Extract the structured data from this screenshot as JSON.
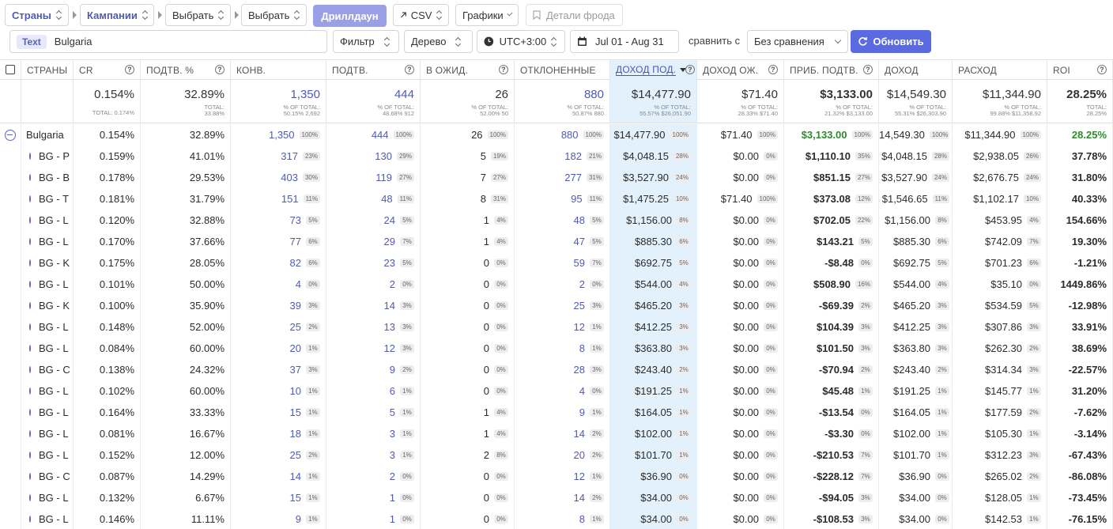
{
  "toolbar": {
    "group1": "Страны",
    "group2": "Кампании",
    "select1": "Выбрать",
    "select2": "Выбрать",
    "drilldown": "Дриллдаун",
    "csv": "CSV",
    "charts": "Графики",
    "fraud": "Детали фрода"
  },
  "filterbar": {
    "text_tag": "Text",
    "text_value": "Bulgaria",
    "filter": "Фильтр",
    "tree": "Дерево",
    "timezone": "UTC+3:00",
    "date_range": "Jul 01 - Aug 31",
    "compare_label": "сравнить с",
    "compare_value": "Без сравнения",
    "update": "Обновить"
  },
  "columns": [
    "СТРАНЫ",
    "CR",
    "ПОДТВ. %",
    "КОНВ.",
    "ПОДТВ.",
    "В ОЖИД.",
    "ОТКЛОНЕННЫЕ",
    "ДОХОД ПОД.",
    "ДОХОД ОЖ.",
    "ПРИБ. ПОДТВ.",
    "ДОХОД",
    "РАСХОД",
    "ROI"
  ],
  "totals": [
    {
      "v": "",
      "s": ""
    },
    {
      "v": "0.154%",
      "s": "TOTAL: 0.174%"
    },
    {
      "v": "32.89%",
      "s": "TOTAL:|33.88%"
    },
    {
      "v": "1,350",
      "s": "% OF TOTAL:|50.15% 2,692"
    },
    {
      "v": "444",
      "s": "% OF TOTAL:|48.68% 912"
    },
    {
      "v": "26",
      "s": "% OF TOTAL:|52.00% 50"
    },
    {
      "v": "880",
      "s": "% OF TOTAL:|50.87% 880"
    },
    {
      "v": "$14,477.90",
      "s": "% OF TOTAL:|55.57% $26,051.90"
    },
    {
      "v": "$71.40",
      "s": "% OF TOTAL:|28.33% $71.40"
    },
    {
      "v": "$3,133.00",
      "s": "% OF TOTAL:|21.32% $3,133.00"
    },
    {
      "v": "$14,549.30",
      "s": "% OF TOTAL:|55.31% $26,303.90"
    },
    {
      "v": "$11,344.90",
      "s": "% OF TOTAL:|99.88% $11,358.92"
    },
    {
      "v": "28.25%",
      "s": "TOTAL:|28.25%"
    }
  ],
  "rows": [
    [
      "Bulgaria",
      "0.154%",
      "32.89%",
      "1,350",
      "100%",
      "444",
      "100%",
      "26",
      "100%",
      "880",
      "100%",
      "$14,477.90",
      "100%",
      "$71.40",
      "100%",
      "$3,133.00",
      "100%",
      "14,549.30",
      "100%",
      "$11,344.90",
      "100%",
      "28.25%"
    ],
    [
      "BG - P",
      "0.159%",
      "41.01%",
      "317",
      "23%",
      "130",
      "29%",
      "5",
      "19%",
      "182",
      "21%",
      "$4,048.15",
      "28%",
      "$0.00",
      "0%",
      "$1,110.10",
      "35%",
      "$4,048.15",
      "28%",
      "$2,938.05",
      "26%",
      "37.78%"
    ],
    [
      "BG - B",
      "0.178%",
      "29.53%",
      "403",
      "30%",
      "119",
      "27%",
      "7",
      "27%",
      "277",
      "31%",
      "$3,527.90",
      "24%",
      "$0.00",
      "0%",
      "$851.15",
      "27%",
      "$3,527.90",
      "24%",
      "$2,676.75",
      "24%",
      "31.80%"
    ],
    [
      "BG - T",
      "0.181%",
      "31.79%",
      "151",
      "11%",
      "48",
      "11%",
      "8",
      "31%",
      "95",
      "11%",
      "$1,475.25",
      "10%",
      "$71.40",
      "100%",
      "$373.08",
      "12%",
      "$1,546.65",
      "11%",
      "$1,102.17",
      "10%",
      "40.33%"
    ],
    [
      "BG - L",
      "0.120%",
      "32.88%",
      "73",
      "5%",
      "24",
      "5%",
      "1",
      "4%",
      "48",
      "5%",
      "$1,156.00",
      "8%",
      "$0.00",
      "0%",
      "$702.05",
      "22%",
      "$1,156.00",
      "8%",
      "$453.95",
      "4%",
      "154.66%"
    ],
    [
      "BG - L",
      "0.170%",
      "37.66%",
      "77",
      "6%",
      "29",
      "7%",
      "1",
      "4%",
      "47",
      "5%",
      "$885.30",
      "6%",
      "$0.00",
      "0%",
      "$143.21",
      "5%",
      "$885.30",
      "6%",
      "$742.09",
      "7%",
      "19.30%"
    ],
    [
      "BG - K",
      "0.175%",
      "28.05%",
      "82",
      "6%",
      "23",
      "5%",
      "0",
      "0%",
      "59",
      "7%",
      "$692.75",
      "5%",
      "$0.00",
      "0%",
      "-$8.48",
      "0%",
      "$692.75",
      "5%",
      "$701.23",
      "6%",
      "-1.21%"
    ],
    [
      "BG - L",
      "0.101%",
      "50.00%",
      "4",
      "0%",
      "2",
      "0%",
      "0",
      "0%",
      "2",
      "0%",
      "$544.00",
      "4%",
      "$0.00",
      "0%",
      "$508.90",
      "16%",
      "$544.00",
      "4%",
      "$35.10",
      "0%",
      "1449.86%"
    ],
    [
      "BG - K",
      "0.100%",
      "35.90%",
      "39",
      "3%",
      "14",
      "3%",
      "0",
      "0%",
      "25",
      "3%",
      "$465.20",
      "3%",
      "$0.00",
      "0%",
      "-$69.39",
      "2%",
      "$465.20",
      "3%",
      "$534.59",
      "5%",
      "-12.98%"
    ],
    [
      "BG - L",
      "0.148%",
      "52.00%",
      "25",
      "2%",
      "13",
      "3%",
      "0",
      "0%",
      "12",
      "1%",
      "$412.25",
      "3%",
      "$0.00",
      "0%",
      "$104.39",
      "3%",
      "$412.25",
      "3%",
      "$307.86",
      "3%",
      "33.91%"
    ],
    [
      "BG - L",
      "0.084%",
      "60.00%",
      "20",
      "1%",
      "12",
      "3%",
      "0",
      "0%",
      "8",
      "1%",
      "$363.80",
      "3%",
      "$0.00",
      "0%",
      "$101.50",
      "3%",
      "$363.80",
      "3%",
      "$262.30",
      "2%",
      "38.69%"
    ],
    [
      "BG - C",
      "0.138%",
      "24.32%",
      "37",
      "3%",
      "9",
      "2%",
      "0",
      "0%",
      "28",
      "3%",
      "$243.40",
      "2%",
      "$0.00",
      "0%",
      "-$70.94",
      "2%",
      "$243.40",
      "2%",
      "$314.34",
      "3%",
      "-22.57%"
    ],
    [
      "BG - L",
      "0.102%",
      "60.00%",
      "10",
      "1%",
      "6",
      "1%",
      "0",
      "0%",
      "4",
      "0%",
      "$191.25",
      "1%",
      "$0.00",
      "0%",
      "$45.48",
      "1%",
      "$191.25",
      "1%",
      "$145.77",
      "1%",
      "31.20%"
    ],
    [
      "BG - L",
      "0.164%",
      "33.33%",
      "15",
      "1%",
      "5",
      "1%",
      "1",
      "4%",
      "9",
      "1%",
      "$164.05",
      "1%",
      "$0.00",
      "0%",
      "-$13.54",
      "0%",
      "$164.05",
      "1%",
      "$177.59",
      "2%",
      "-7.62%"
    ],
    [
      "BG - L",
      "0.081%",
      "16.67%",
      "18",
      "1%",
      "3",
      "1%",
      "1",
      "4%",
      "14",
      "2%",
      "$102.00",
      "1%",
      "$0.00",
      "0%",
      "-$3.30",
      "0%",
      "$102.00",
      "1%",
      "$105.30",
      "1%",
      "-3.14%"
    ],
    [
      "BG - L",
      "0.152%",
      "12.00%",
      "25",
      "2%",
      "3",
      "1%",
      "2",
      "8%",
      "20",
      "2%",
      "$101.70",
      "1%",
      "$0.00",
      "0%",
      "-$210.53",
      "7%",
      "$101.70",
      "1%",
      "$312.23",
      "3%",
      "-67.43%"
    ],
    [
      "BG - C",
      "0.087%",
      "14.29%",
      "14",
      "1%",
      "2",
      "0%",
      "0",
      "0%",
      "12",
      "1%",
      "$36.90",
      "0%",
      "$0.00",
      "0%",
      "-$228.12",
      "7%",
      "$36.90",
      "0%",
      "$265.02",
      "2%",
      "-86.08%"
    ],
    [
      "BG - L",
      "0.132%",
      "6.67%",
      "15",
      "1%",
      "1",
      "0%",
      "0",
      "0%",
      "14",
      "2%",
      "$34.00",
      "0%",
      "$0.00",
      "0%",
      "-$94.05",
      "3%",
      "$34.00",
      "0%",
      "$128.05",
      "1%",
      "-73.45%"
    ],
    [
      "BG - L",
      "0.146%",
      "11.11%",
      "9",
      "1%",
      "1",
      "0%",
      "0",
      "0%",
      "8",
      "1%",
      "$34.00",
      "0%",
      "$0.00",
      "0%",
      "-$108.53",
      "3%",
      "$34.00",
      "0%",
      "$142.53",
      "1%",
      "-76.15%"
    ]
  ]
}
